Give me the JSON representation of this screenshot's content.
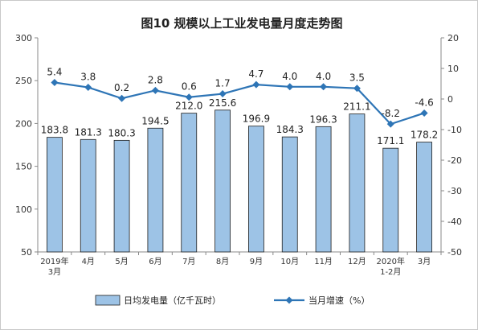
{
  "chart_data": {
    "type": "bar+line",
    "title": "图10  规模以上工业发电量月度走势图",
    "categories": [
      "2019年\n3月",
      "4月",
      "5月",
      "6月",
      "7月",
      "8月",
      "9月",
      "10月",
      "11月",
      "12月",
      "2020年\n1-2月",
      "3月"
    ],
    "series": [
      {
        "name": "日均发电量（亿千瓦时）",
        "type": "bar",
        "axis": "left",
        "color": "#9dc3e6",
        "values": [
          183.8,
          181.3,
          180.3,
          194.5,
          212.0,
          215.6,
          196.9,
          184.3,
          196.3,
          211.1,
          171.1,
          178.2
        ],
        "labels": [
          "183.8",
          "181.3",
          "180.3",
          "194.5",
          "212.0",
          "215.6",
          "196.9",
          "184.3",
          "196.3",
          "211.1",
          "171.1",
          "178.2"
        ]
      },
      {
        "name": "当月增速（%）",
        "type": "line",
        "axis": "right",
        "color": "#2e75b6",
        "values": [
          5.4,
          3.8,
          0.2,
          2.8,
          0.6,
          1.7,
          4.7,
          4.0,
          4.0,
          3.5,
          -8.2,
          -4.6
        ],
        "labels": [
          "5.4",
          "3.8",
          "0.2",
          "2.8",
          "0.6",
          "1.7",
          "4.7",
          "4.0",
          "4.0",
          "3.5",
          "-8.2",
          "-4.6"
        ]
      }
    ],
    "y_left": {
      "lim": [
        50,
        300
      ],
      "ticks": [
        "50",
        "100",
        "150",
        "200",
        "250",
        "300"
      ]
    },
    "y_right": {
      "lim": [
        -50,
        20
      ],
      "ticks": [
        "-50",
        "-40",
        "-30",
        "-20",
        "-10",
        "0",
        "10",
        "20"
      ]
    },
    "legend_position": "bottom",
    "grid": false
  }
}
